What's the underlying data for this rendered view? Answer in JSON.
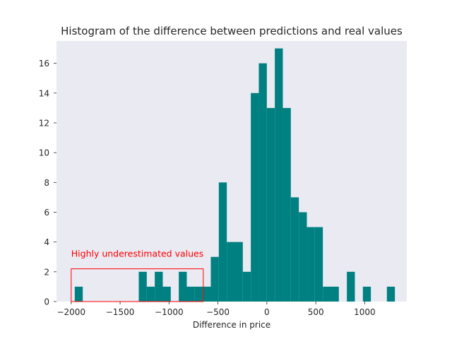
{
  "chart_data": {
    "type": "bar",
    "title": "Histogram of the difference between predictions and real values",
    "xlabel": "Difference in price",
    "ylabel": "",
    "xlim": [
      -2150,
      1430
    ],
    "ylim": [
      0,
      17.5
    ],
    "xticks": [
      -2000,
      -1500,
      -1000,
      -500,
      0,
      500,
      1000
    ],
    "xtick_labels": [
      "−2000",
      "−1500",
      "−1000",
      "−500",
      "0",
      "500",
      "1000"
    ],
    "yticks": [
      0,
      2,
      4,
      6,
      8,
      10,
      12,
      14,
      16
    ],
    "ytick_labels": [
      "0",
      "2",
      "4",
      "6",
      "8",
      "10",
      "12",
      "14",
      "16"
    ],
    "grid": false,
    "bar_color": "#008080",
    "background_color": "#eaeaf2",
    "bins": [
      {
        "x0": -1963.5,
        "x1": -1881.7,
        "count": 1
      },
      {
        "x0": -1309.3,
        "x1": -1227.5,
        "count": 2
      },
      {
        "x0": -1227.5,
        "x1": -1145.7,
        "count": 1
      },
      {
        "x0": -1145.7,
        "x1": -1063.9,
        "count": 2
      },
      {
        "x0": -1063.9,
        "x1": -982.1,
        "count": 1
      },
      {
        "x0": -900.3,
        "x1": -818.5,
        "count": 2
      },
      {
        "x0": -818.5,
        "x1": -736.7,
        "count": 1
      },
      {
        "x0": -736.7,
        "x1": -654.9,
        "count": 1
      },
      {
        "x0": -654.9,
        "x1": -573.1,
        "count": 1
      },
      {
        "x0": -573.1,
        "x1": -491.3,
        "count": 3
      },
      {
        "x0": -491.3,
        "x1": -409.5,
        "count": 8
      },
      {
        "x0": -409.5,
        "x1": -327.7,
        "count": 4
      },
      {
        "x0": -327.7,
        "x1": -245.9,
        "count": 4
      },
      {
        "x0": -245.9,
        "x1": -164.1,
        "count": 2
      },
      {
        "x0": -164.1,
        "x1": -82.3,
        "count": 14
      },
      {
        "x0": -82.3,
        "x1": -0.5,
        "count": 16
      },
      {
        "x0": -0.5,
        "x1": 81.3,
        "count": 13
      },
      {
        "x0": 81.3,
        "x1": 163.1,
        "count": 17
      },
      {
        "x0": 163.1,
        "x1": 244.9,
        "count": 13
      },
      {
        "x0": 244.9,
        "x1": 326.7,
        "count": 7
      },
      {
        "x0": 326.7,
        "x1": 408.5,
        "count": 6
      },
      {
        "x0": 408.5,
        "x1": 490.3,
        "count": 5
      },
      {
        "x0": 490.3,
        "x1": 572.1,
        "count": 5
      },
      {
        "x0": 572.1,
        "x1": 653.9,
        "count": 1
      },
      {
        "x0": 653.9,
        "x1": 735.7,
        "count": 1
      },
      {
        "x0": 817.5,
        "x1": 899.3,
        "count": 2
      },
      {
        "x0": 981.1,
        "x1": 1062.9,
        "count": 1
      },
      {
        "x0": 1226.5,
        "x1": 1308.3,
        "count": 1
      }
    ],
    "annotations": [
      {
        "text": "Highly underestimated values",
        "color": "#ff0000",
        "box_x": [
          -2000,
          -650
        ],
        "box_y": [
          0,
          2.2
        ]
      }
    ]
  }
}
